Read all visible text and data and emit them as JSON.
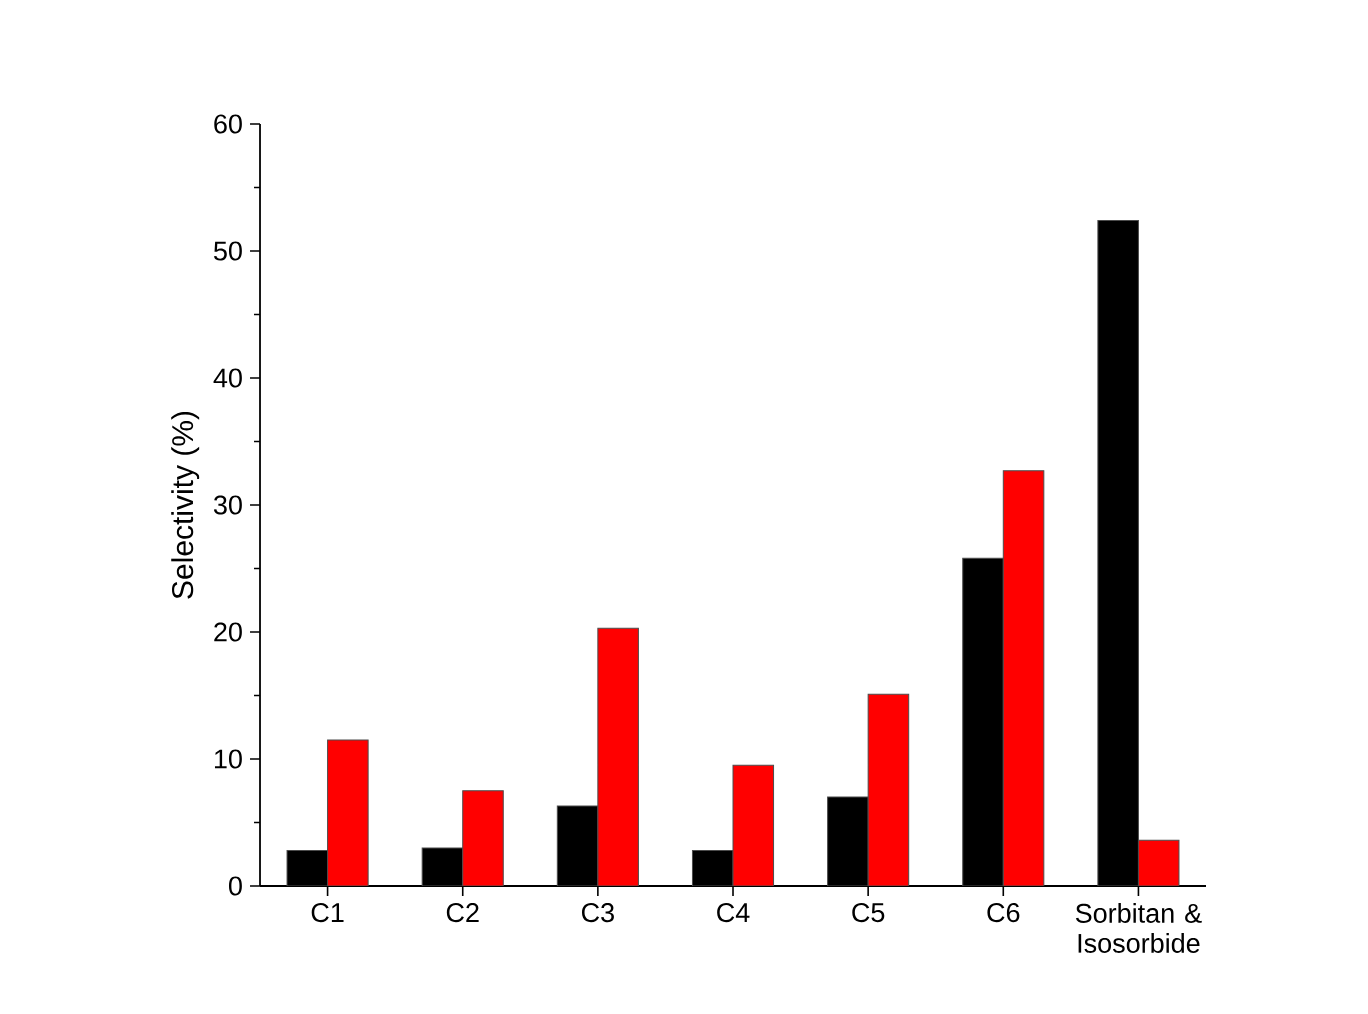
{
  "chart_data": {
    "type": "bar",
    "ylabel": "Selectivity (%)",
    "categories": [
      "C1",
      "C2",
      "C3",
      "C4",
      "C5",
      "C6",
      "Sorbitan & Isosorbide"
    ],
    "series": [
      {
        "color": "#000000",
        "values": [
          2.8,
          3.0,
          6.3,
          2.8,
          7.0,
          25.8,
          52.4
        ]
      },
      {
        "color": "#ff0000",
        "values": [
          11.5,
          7.5,
          20.3,
          9.5,
          15.1,
          32.7,
          3.6
        ]
      }
    ],
    "ylim": [
      0,
      60
    ],
    "yticks": [
      0,
      10,
      20,
      30,
      40,
      50,
      60
    ]
  }
}
